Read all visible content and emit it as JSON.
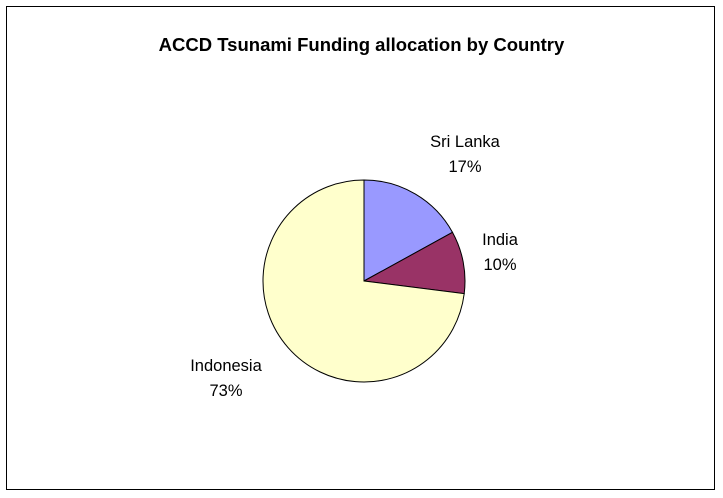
{
  "chart_data": {
    "type": "pie",
    "title": "ACCD Tsunami Funding allocation by Country",
    "slices": [
      {
        "name": "Sri Lanka",
        "value": 17,
        "label": "17%",
        "color": "#9999FF"
      },
      {
        "name": "India",
        "value": 10,
        "label": "10%",
        "color": "#993366"
      },
      {
        "name": "Indonesia",
        "value": 73,
        "label": "73%",
        "color": "#FFFFCC"
      }
    ],
    "start_position": "12 o'clock",
    "direction": "clockwise",
    "legend": "none",
    "outline_color": "#000000"
  }
}
